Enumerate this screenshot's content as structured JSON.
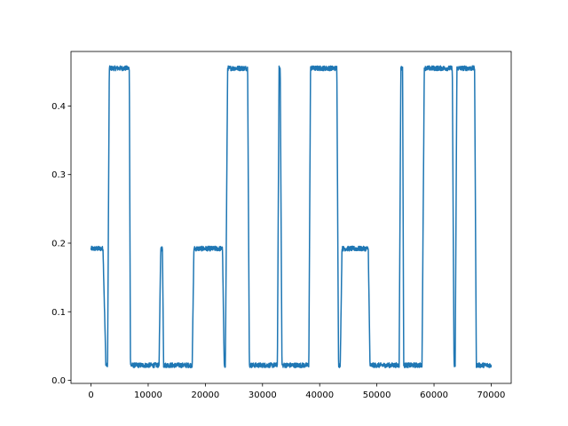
{
  "chart_data": {
    "type": "line",
    "title": "",
    "xlabel": "",
    "ylabel": "",
    "xlim": [
      -3500,
      73500
    ],
    "ylim": [
      -0.0045,
      0.4795
    ],
    "grid": false,
    "x_ticks": [
      {
        "value": 0,
        "label": "0"
      },
      {
        "value": 10000,
        "label": "10000"
      },
      {
        "value": 20000,
        "label": "20000"
      },
      {
        "value": 30000,
        "label": "30000"
      },
      {
        "value": 40000,
        "label": "40000"
      },
      {
        "value": 50000,
        "label": "50000"
      },
      {
        "value": 60000,
        "label": "60000"
      },
      {
        "value": 70000,
        "label": "70000"
      }
    ],
    "y_ticks": [
      {
        "value": 0.0,
        "label": "0.0"
      },
      {
        "value": 0.1,
        "label": "0.1"
      },
      {
        "value": 0.2,
        "label": "0.2"
      },
      {
        "value": 0.3,
        "label": "0.3"
      },
      {
        "value": 0.4,
        "label": "0.4"
      }
    ],
    "colors": {
      "series": "#1f77b4",
      "axes": "#000000",
      "background": "#ffffff"
    },
    "series": [
      {
        "noise": 0.0035,
        "segments": [
          [
            0,
            0.192
          ],
          [
            2100,
            0.192
          ],
          [
            2600,
            0.022
          ],
          [
            2900,
            0.022
          ],
          [
            3200,
            0.455
          ],
          [
            6700,
            0.455
          ],
          [
            6900,
            0.022
          ],
          [
            11900,
            0.022
          ],
          [
            12200,
            0.192
          ],
          [
            12500,
            0.192
          ],
          [
            12700,
            0.022
          ],
          [
            17700,
            0.022
          ],
          [
            18000,
            0.192
          ],
          [
            23000,
            0.192
          ],
          [
            23300,
            0.022
          ],
          [
            23500,
            0.022
          ],
          [
            23900,
            0.455
          ],
          [
            27400,
            0.455
          ],
          [
            27700,
            0.022
          ],
          [
            32600,
            0.022
          ],
          [
            32900,
            0.455
          ],
          [
            33100,
            0.455
          ],
          [
            33400,
            0.022
          ],
          [
            38100,
            0.022
          ],
          [
            38400,
            0.455
          ],
          [
            43000,
            0.455
          ],
          [
            43300,
            0.022
          ],
          [
            43600,
            0.022
          ],
          [
            43900,
            0.192
          ],
          [
            48500,
            0.192
          ],
          [
            48800,
            0.022
          ],
          [
            53900,
            0.022
          ],
          [
            54200,
            0.455
          ],
          [
            54500,
            0.455
          ],
          [
            54700,
            0.022
          ],
          [
            57900,
            0.022
          ],
          [
            58300,
            0.455
          ],
          [
            63200,
            0.455
          ],
          [
            63500,
            0.022
          ],
          [
            63700,
            0.022
          ],
          [
            64000,
            0.455
          ],
          [
            67100,
            0.455
          ],
          [
            67400,
            0.022
          ],
          [
            70000,
            0.022
          ]
        ]
      }
    ]
  }
}
